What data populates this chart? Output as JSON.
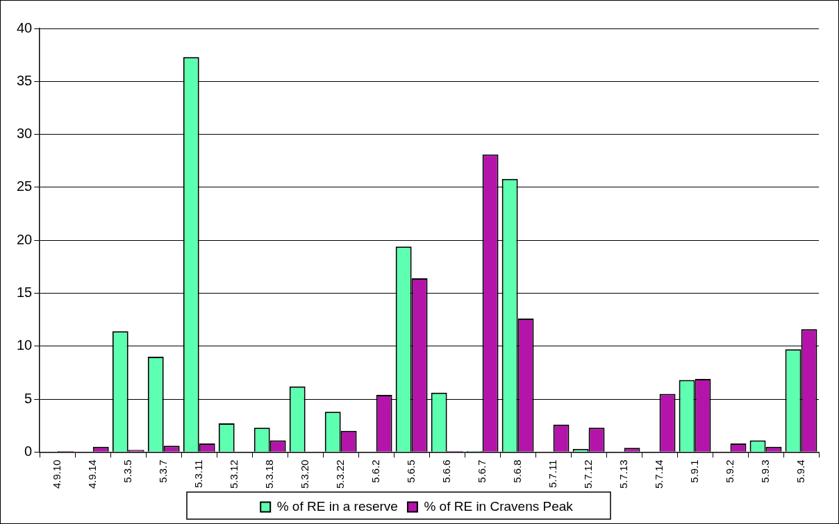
{
  "chart_data": {
    "type": "bar",
    "categories": [
      "4.9.10",
      "4.9.14",
      "5.3.5",
      "5.3.7",
      "5.3.11",
      "5.3.12",
      "5.3.18",
      "5.3.20",
      "5.3.22",
      "5.6.2",
      "5.6.5",
      "5.6.6",
      "5.6.7",
      "5.6.8",
      "5.7.11",
      "5.7.12",
      "5.7.13",
      "5.7.14",
      "5.9.1",
      "5.9.2",
      "5.9.3",
      "5.9.4"
    ],
    "series": [
      {
        "name": "% of RE in a reserve",
        "color": "#5dffb0",
        "values": [
          null,
          null,
          11.4,
          9.0,
          37.3,
          2.7,
          2.3,
          6.2,
          3.8,
          null,
          19.4,
          5.6,
          0.1,
          25.8,
          null,
          0.3,
          null,
          null,
          6.8,
          null,
          1.1,
          9.7
        ]
      },
      {
        "name": "% of RE in Cravens Peak",
        "color": "#b414aa",
        "values": [
          0.1,
          0.5,
          0.2,
          0.6,
          0.8,
          null,
          1.1,
          null,
          2.0,
          5.4,
          16.4,
          0.1,
          28.1,
          12.6,
          2.6,
          2.3,
          0.4,
          5.5,
          6.9,
          0.8,
          0.5,
          11.6
        ]
      }
    ],
    "ylim": [
      0,
      40
    ],
    "yticks": [
      0,
      5,
      10,
      15,
      20,
      25,
      30,
      35,
      40
    ],
    "grid": "y",
    "legend": "bottom"
  }
}
